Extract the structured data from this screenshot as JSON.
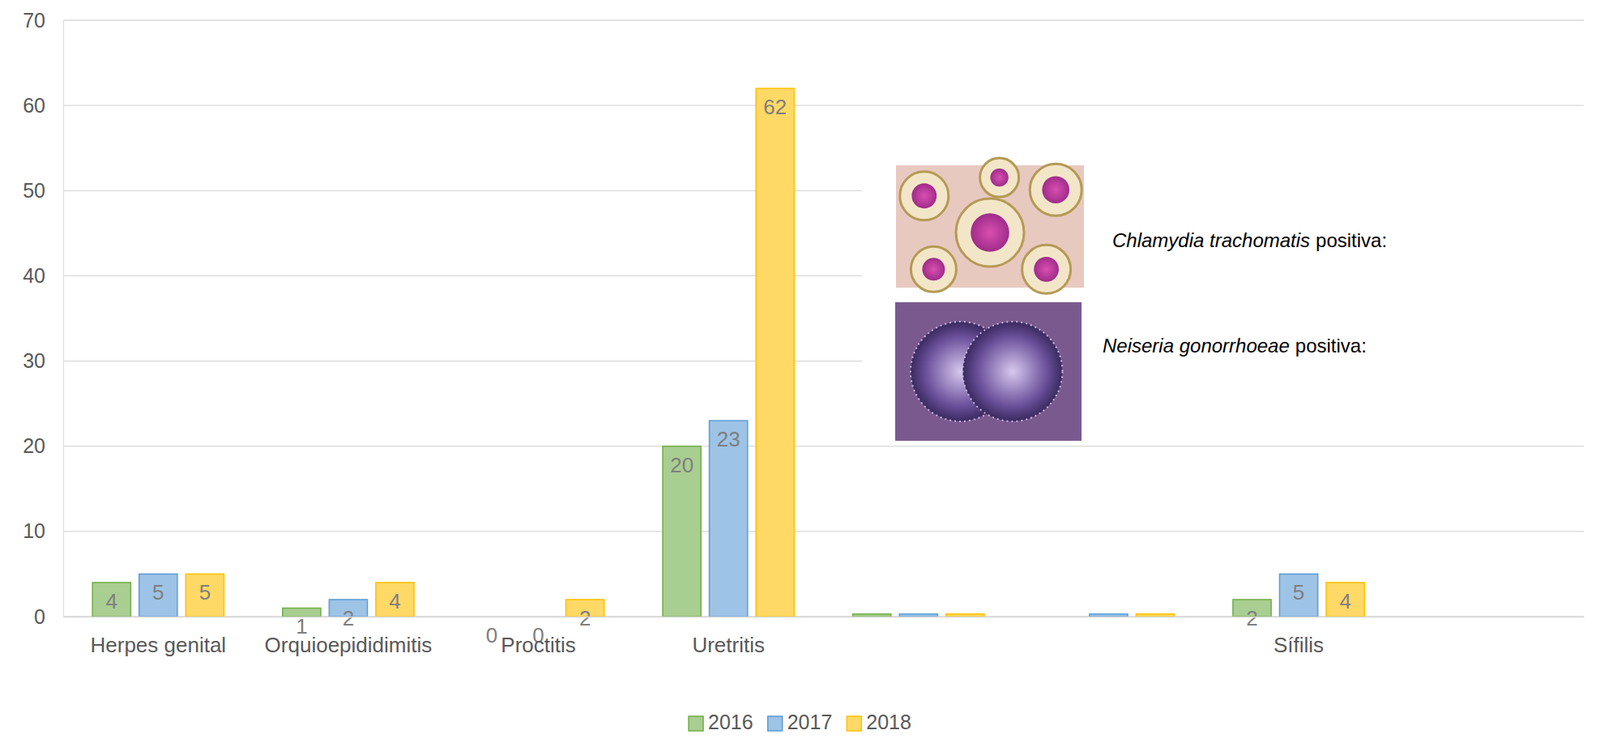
{
  "chart_data": {
    "type": "bar",
    "categories": [
      "Herpes genital",
      "Orquioepididimitis",
      "Proctitis",
      "Uretritis",
      null,
      null,
      "Sífilis",
      null
    ],
    "series": [
      {
        "name": "2016",
        "color": "#70ad47",
        "values": [
          4,
          1,
          0,
          20,
          0.3,
          null,
          2,
          null
        ],
        "value_labels": [
          "4",
          "1",
          "0",
          "20",
          null,
          null,
          "2",
          null
        ]
      },
      {
        "name": "2017",
        "color": "#5b9bd5",
        "values": [
          5,
          2,
          0,
          23,
          0.3,
          0.3,
          5,
          null
        ],
        "value_labels": [
          "5",
          "2",
          "0",
          "23",
          null,
          null,
          "5",
          null
        ]
      },
      {
        "name": "2018",
        "color": "#ffc000",
        "values": [
          5,
          4,
          2,
          62,
          0.3,
          0.3,
          4,
          null
        ],
        "value_labels": [
          "5",
          "4",
          "2",
          "62",
          null,
          null,
          "4",
          null
        ]
      }
    ],
    "ylim": [
      0,
      70
    ],
    "yticks": [
      0,
      10,
      20,
      30,
      40,
      50,
      60,
      70
    ],
    "grid": true,
    "data_labels": true,
    "legend": "bottom",
    "annotations": [
      {
        "italic": "Chlamydia trachomatis",
        "text": "positiva:"
      },
      {
        "italic": "Neiseria gonorrhoeae",
        "text": "positiva:"
      }
    ]
  }
}
